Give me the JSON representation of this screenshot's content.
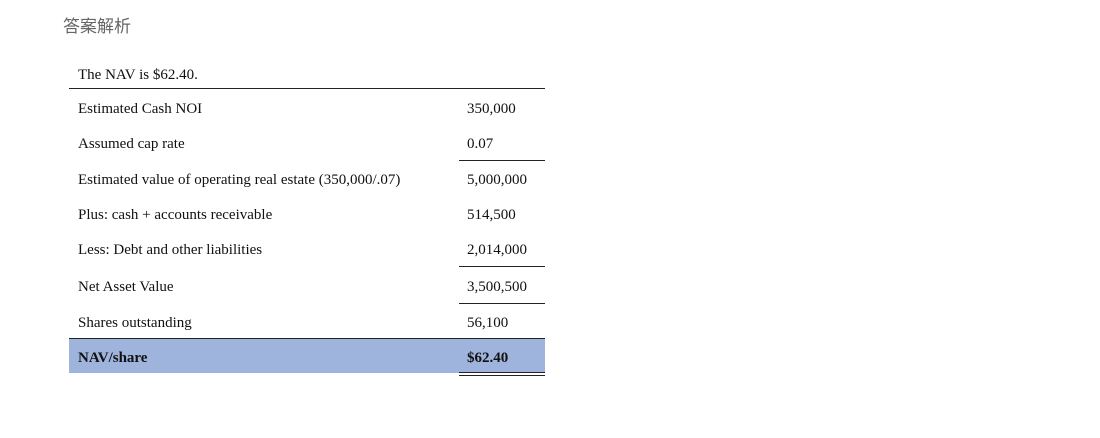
{
  "header": {
    "title": "答案解析"
  },
  "table": {
    "caption": "The NAV is $62.40.",
    "rows": [
      [
        "Estimated Cash NOI",
        "350,000"
      ],
      [
        "Assumed cap rate",
        "0.07"
      ],
      [
        "Estimated value of operating real estate (350,000/.07)",
        "5,000,000"
      ],
      [
        "Plus:  cash + accounts receivable",
        "514,500"
      ],
      [
        "Less:  Debt and other liabilities",
        "2,014,000"
      ],
      [
        "Net Asset Value",
        "3,500,500"
      ],
      [
        "Shares outstanding",
        "56,100"
      ],
      [
        "NAV/share",
        "$62.40"
      ]
    ]
  }
}
